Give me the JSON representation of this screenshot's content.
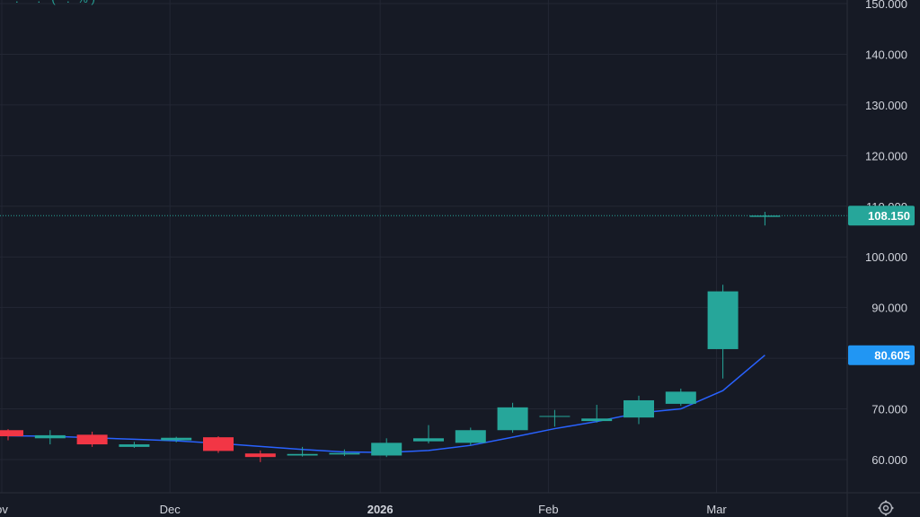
{
  "legend": {
    "partial_text": "···.··  ··.··  ( ··.··% )"
  },
  "colors": {
    "background": "#161a25",
    "grid": "#232734",
    "up": "#26a69a",
    "down": "#f23645",
    "ma": "#2962ff",
    "axis_text": "#d1d4dc",
    "ma_badge": "#2196f3"
  },
  "settings_icon": "gear-icon",
  "chart_data": {
    "type": "candlestick",
    "interval": "weekly",
    "y_ticks": [
      "150.000",
      "140.000",
      "130.000",
      "120.000",
      "110.000",
      "100.000",
      "90.000",
      "80.000",
      "70.000",
      "60.000"
    ],
    "y_tick_values": [
      150,
      140,
      130,
      120,
      110,
      100,
      90,
      80,
      70,
      60
    ],
    "ylim": [
      58,
      150.5
    ],
    "time_labels": [
      {
        "text": "ov",
        "index": -0.15,
        "bold": false
      },
      {
        "text": "Dec",
        "index": 3.85,
        "bold": false
      },
      {
        "text": "2026",
        "index": 8.85,
        "bold": true
      },
      {
        "text": "Feb",
        "index": 12.85,
        "bold": false
      },
      {
        "text": "Mar",
        "index": 16.85,
        "bold": false
      }
    ],
    "candles": [
      {
        "o": 65.8,
        "h": 66.0,
        "l": 63.8,
        "c": 64.6
      },
      {
        "o": 64.2,
        "h": 65.8,
        "l": 63.0,
        "c": 64.8
      },
      {
        "o": 64.9,
        "h": 65.5,
        "l": 62.5,
        "c": 63.0
      },
      {
        "o": 62.5,
        "h": 63.5,
        "l": 62.3,
        "c": 63.0
      },
      {
        "o": 63.8,
        "h": 64.5,
        "l": 63.4,
        "c": 64.3
      },
      {
        "o": 64.4,
        "h": 64.6,
        "l": 61.3,
        "c": 61.7
      },
      {
        "o": 61.2,
        "h": 61.8,
        "l": 59.5,
        "c": 60.5
      },
      {
        "o": 60.8,
        "h": 62.5,
        "l": 60.6,
        "c": 61.1
      },
      {
        "o": 61.0,
        "h": 62.0,
        "l": 60.7,
        "c": 61.3
      },
      {
        "o": 60.8,
        "h": 64.2,
        "l": 60.5,
        "c": 63.3
      },
      {
        "o": 63.6,
        "h": 66.8,
        "l": 63.2,
        "c": 64.2
      },
      {
        "o": 63.3,
        "h": 66.3,
        "l": 62.8,
        "c": 65.8
      },
      {
        "o": 65.8,
        "h": 71.2,
        "l": 65.3,
        "c": 70.3
      },
      {
        "o": 68.6,
        "h": 69.8,
        "l": 66.5,
        "c": 68.6
      },
      {
        "o": 67.6,
        "h": 70.8,
        "l": 67.3,
        "c": 68.1
      },
      {
        "o": 68.3,
        "h": 72.6,
        "l": 67.0,
        "c": 71.7
      },
      {
        "o": 71.0,
        "h": 74.0,
        "l": 70.6,
        "c": 73.4
      },
      {
        "o": 81.8,
        "h": 94.5,
        "l": 76.0,
        "c": 93.2
      },
      {
        "o": 107.9,
        "h": 108.9,
        "l": 106.2,
        "c": 108.15
      }
    ],
    "moving_average": {
      "values": [
        64.7,
        64.6,
        64.3,
        64.0,
        63.7,
        63.2,
        62.6,
        62.0,
        61.5,
        61.4,
        61.8,
        62.8,
        64.4,
        66.1,
        67.5,
        69.2,
        70.0,
        73.6,
        80.605
      ],
      "last_value": "80.605"
    },
    "last_price": "108.150",
    "grid": true
  }
}
